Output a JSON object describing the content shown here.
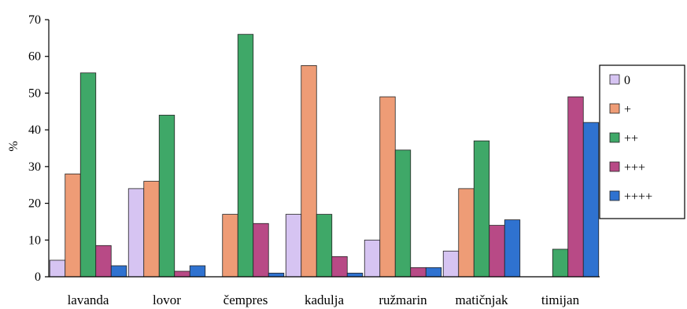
{
  "chart_data": {
    "type": "bar",
    "ylabel": "%",
    "xlabel": "",
    "ylim": [
      0,
      70
    ],
    "yticks": [
      "0",
      "10",
      "20",
      "30",
      "40",
      "50",
      "60",
      "70"
    ],
    "categories": [
      "lavanda",
      "lovor",
      "čempres",
      "kadulja",
      "ružmarin",
      "matičnjak",
      "timijan"
    ],
    "legend_position": "right",
    "series": [
      {
        "name": "0",
        "color": "#d6c4f2",
        "values": [
          4.5,
          24,
          0,
          17,
          10,
          7,
          0
        ]
      },
      {
        "name": "+",
        "color": "#ee9c76",
        "values": [
          28,
          26,
          17,
          57.5,
          49,
          24,
          0
        ]
      },
      {
        "name": "++",
        "color": "#3fa868",
        "values": [
          55.5,
          44,
          66,
          17,
          34.5,
          37,
          7.5
        ]
      },
      {
        "name": "+++",
        "color": "#b84a86",
        "values": [
          8.5,
          1.5,
          14.5,
          5.5,
          2.5,
          14,
          49
        ]
      },
      {
        "name": "++++",
        "color": "#2f72d0",
        "values": [
          3,
          3,
          1,
          1,
          2.5,
          15.5,
          42
        ]
      }
    ]
  }
}
